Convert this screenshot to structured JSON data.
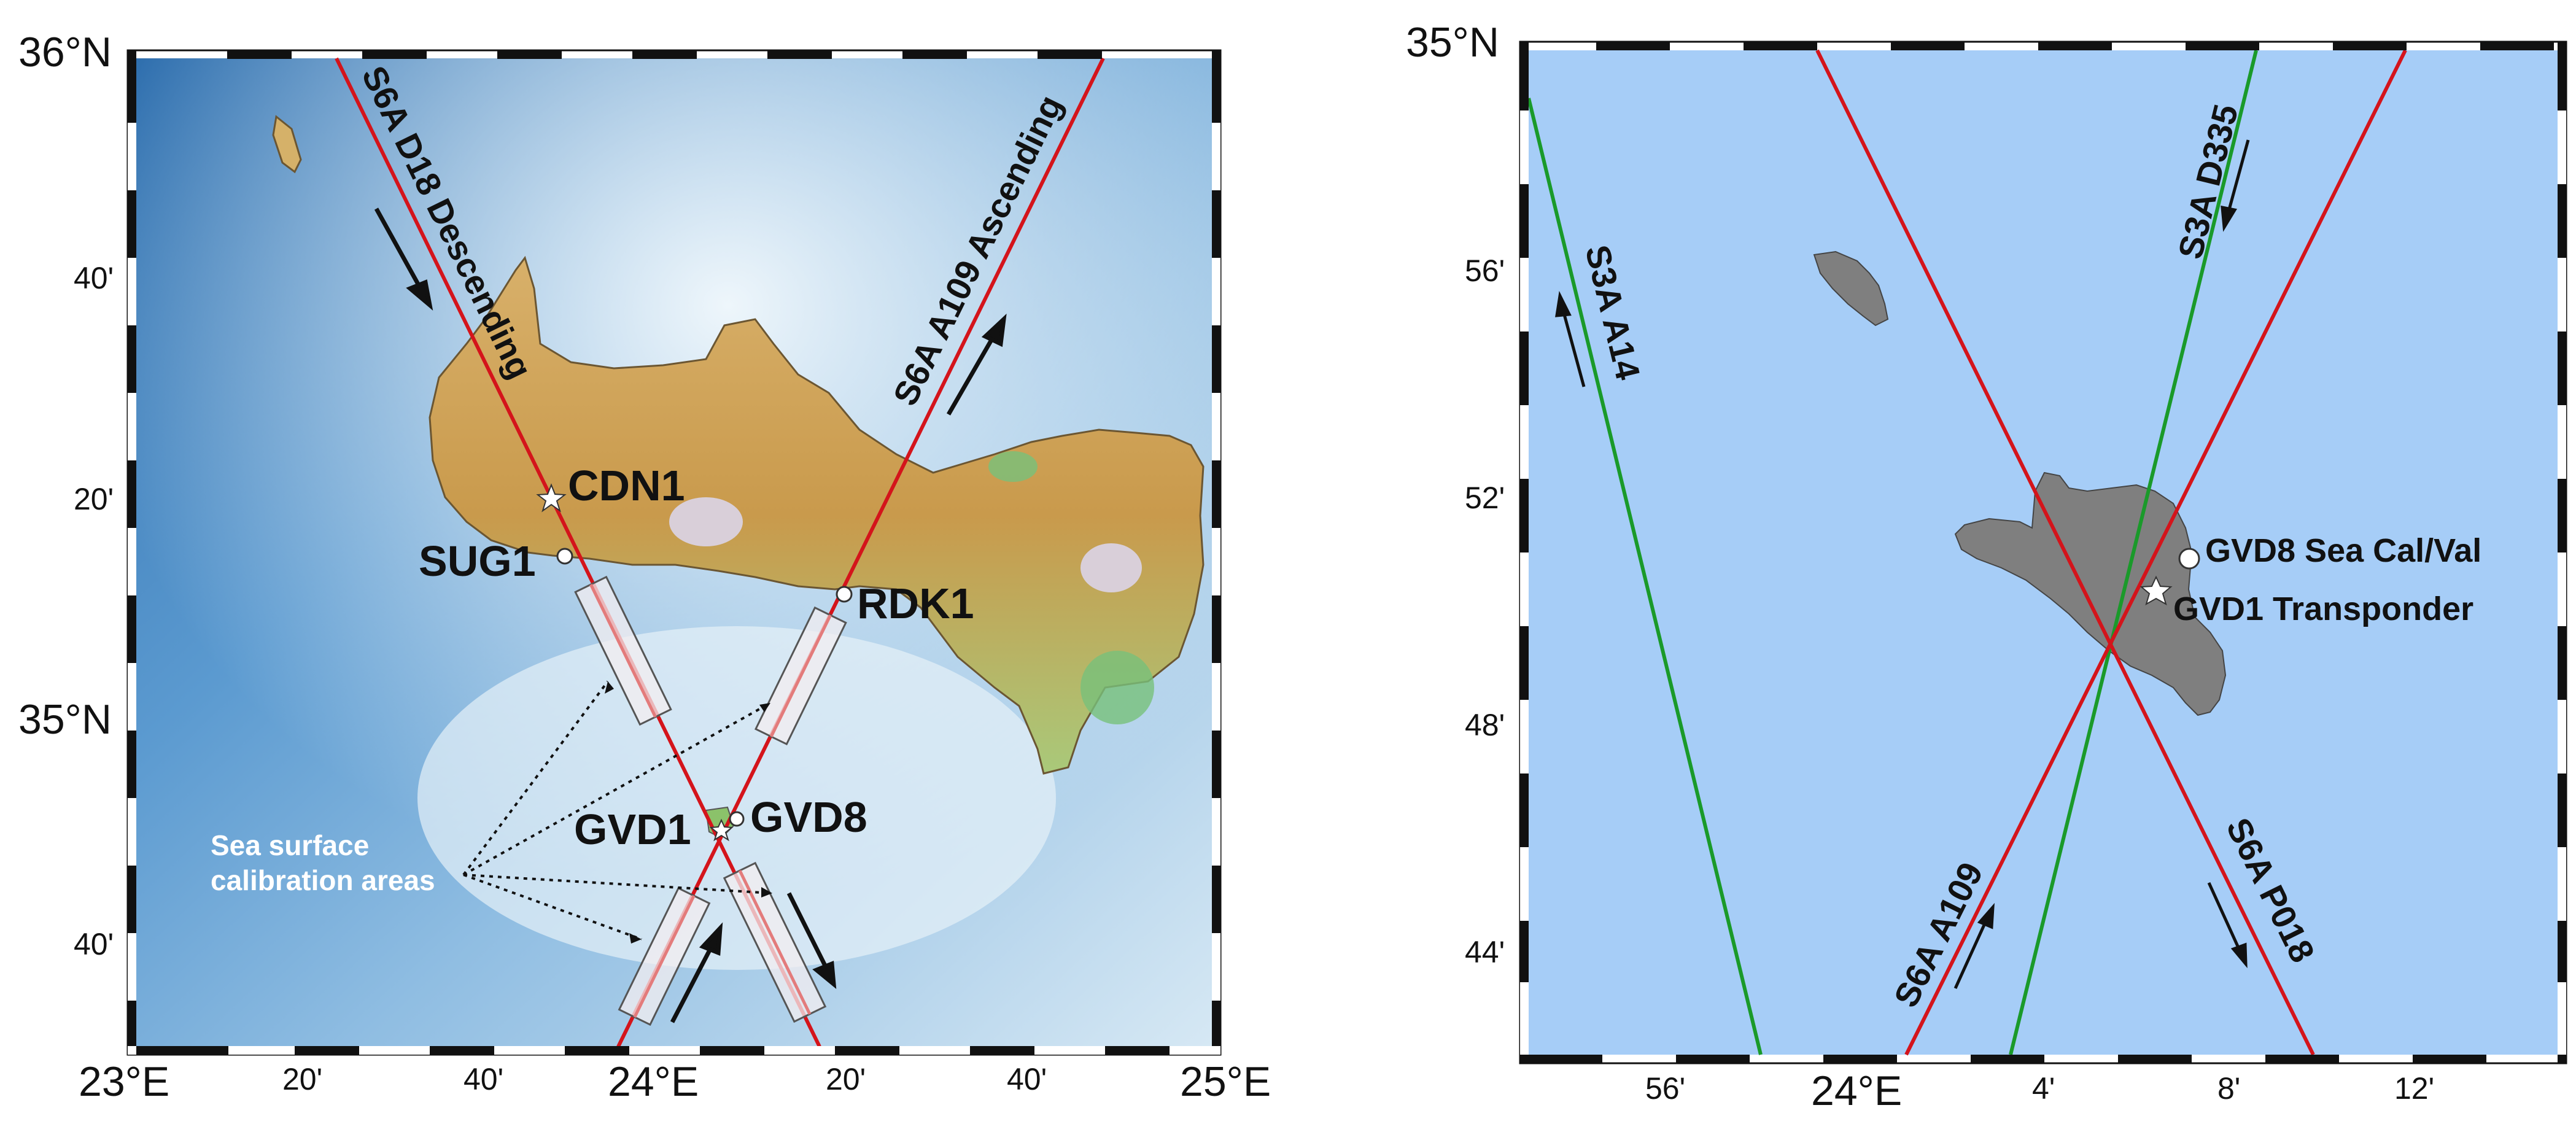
{
  "left_map": {
    "lat_labels": {
      "top": "36°N",
      "upper_mid": "40'",
      "mid_upper": "20'",
      "mid": "35°N",
      "lower": "40'"
    },
    "lon_labels": {
      "left": "23°E",
      "t1": "20'",
      "t2": "40'",
      "center": "24°E",
      "t3": "20'",
      "t4": "40'",
      "right": "25°E"
    },
    "tracks": {
      "descending": "S6A D18 Descending",
      "ascending": "S6A A109 Ascending"
    },
    "stations": {
      "cdn": "CDN1",
      "sug": "SUG1",
      "rdk": "RDK1",
      "gvd1": "GVD1",
      "gvd8": "GVD8"
    },
    "annotation": {
      "line1": "Sea surface",
      "line2": "calibration areas"
    }
  },
  "right_map": {
    "lat_labels": {
      "top": "35°N",
      "l56": "56'",
      "l52": "52'",
      "l48": "48'",
      "l44": "44'"
    },
    "lon_labels": {
      "l56": "56'",
      "center": "24°E",
      "l4": "4'",
      "l8": "8'",
      "l12": "12'"
    },
    "tracks": {
      "s3a_a14": "S3A A14",
      "s3a_d335": "S3A D335",
      "s6a_a109": "S6A A109",
      "s6a_p018": "S6A P018"
    },
    "stations": {
      "gvd8": "GVD8 Sea Cal/Val",
      "gvd1": "GVD1 Transponder"
    }
  },
  "colors": {
    "track_red": "#d4141b",
    "track_green": "#1a9a2a",
    "sea_light": "#a6cdf7",
    "island": "#7f7f7f"
  }
}
